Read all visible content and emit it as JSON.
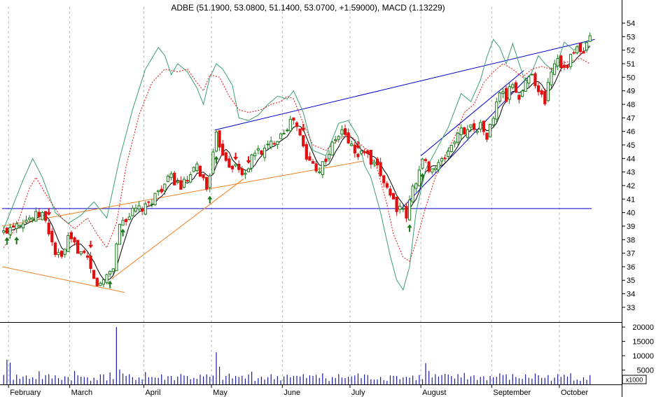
{
  "chart_data": {
    "type": "candlestick",
    "title": "ADBE (51.1900, 53.0800, 51.1400, 53.0700, +1.59000), MACD (1.13229)",
    "volume_unit_label": "x1000",
    "price_axis": {
      "ylim": [
        32.4,
        54.7
      ],
      "ticks": [
        33,
        34,
        35,
        36,
        37,
        38,
        39,
        40,
        41,
        42,
        43,
        44,
        45,
        46,
        47,
        48,
        49,
        50,
        51,
        52,
        53,
        54
      ]
    },
    "volume_axis": {
      "ylim": [
        0,
        21000
      ],
      "ticks": [
        5000,
        10000,
        15000,
        20000
      ]
    },
    "x_range": [
      0,
      183
    ],
    "months": [
      {
        "label": "February",
        "x": 2
      },
      {
        "label": "March",
        "x": 21
      },
      {
        "label": "April",
        "x": 44
      },
      {
        "label": "May",
        "x": 65
      },
      {
        "label": "June",
        "x": 87
      },
      {
        "label": "July",
        "x": 108
      },
      {
        "label": "August",
        "x": 130
      },
      {
        "label": "September",
        "x": 152
      },
      {
        "label": "October",
        "x": 173
      }
    ],
    "price_anchors": [
      [
        0,
        38.5
      ],
      [
        3,
        39.2
      ],
      [
        8,
        39.6
      ],
      [
        12,
        39.9
      ],
      [
        14,
        38.6
      ],
      [
        16,
        37.0
      ],
      [
        18,
        36.6
      ],
      [
        20,
        38.0
      ],
      [
        22,
        37.6
      ],
      [
        26,
        36.4
      ],
      [
        28,
        35.0
      ],
      [
        30,
        34.6
      ],
      [
        32,
        35.4
      ],
      [
        34,
        36.0
      ],
      [
        36,
        39.2
      ],
      [
        38,
        39.6
      ],
      [
        41,
        40.2
      ],
      [
        44,
        40.3
      ],
      [
        48,
        41.6
      ],
      [
        52,
        42.6
      ],
      [
        55,
        41.9
      ],
      [
        58,
        42.6
      ],
      [
        60,
        43.4
      ],
      [
        62,
        42.4
      ],
      [
        63,
        41.8
      ],
      [
        65,
        44.2
      ],
      [
        66,
        45.6
      ],
      [
        68,
        44.5
      ],
      [
        70,
        43.6
      ],
      [
        72,
        43.4
      ],
      [
        74,
        42.8
      ],
      [
        76,
        43.4
      ],
      [
        78,
        44.5
      ],
      [
        81,
        44.6
      ],
      [
        85,
        45.6
      ],
      [
        88,
        46.4
      ],
      [
        90,
        46.9
      ],
      [
        92,
        45.6
      ],
      [
        94,
        44.0
      ],
      [
        96,
        43.6
      ],
      [
        98,
        43.2
      ],
      [
        100,
        44.0
      ],
      [
        103,
        45.4
      ],
      [
        105,
        46.0
      ],
      [
        107,
        45.3
      ],
      [
        110,
        44.1
      ],
      [
        112,
        44.6
      ],
      [
        114,
        43.6
      ],
      [
        116,
        43.2
      ],
      [
        118,
        42.4
      ],
      [
        120,
        41.4
      ],
      [
        122,
        40.4
      ],
      [
        124,
        40.0
      ],
      [
        125,
        39.7
      ],
      [
        127,
        41.8
      ],
      [
        129,
        43.1
      ],
      [
        130,
        43.8
      ],
      [
        133,
        43.2
      ],
      [
        136,
        43.7
      ],
      [
        139,
        45.0
      ],
      [
        142,
        46.0
      ],
      [
        145,
        46.3
      ],
      [
        148,
        46.4
      ],
      [
        150,
        45.6
      ],
      [
        152,
        47.0
      ],
      [
        154,
        49.0
      ],
      [
        156,
        48.4
      ],
      [
        158,
        49.6
      ],
      [
        160,
        48.4
      ],
      [
        162,
        49.6
      ],
      [
        164,
        50.5
      ],
      [
        166,
        48.8
      ],
      [
        168,
        48.3
      ],
      [
        170,
        50.6
      ],
      [
        172,
        51.5
      ],
      [
        174,
        50.6
      ],
      [
        176,
        51.4
      ],
      [
        178,
        52.1
      ],
      [
        180,
        51.6
      ],
      [
        182,
        53.07
      ]
    ],
    "bollinger_upper": [
      [
        0,
        38.8
      ],
      [
        6,
        42.4
      ],
      [
        9,
        44.0
      ],
      [
        12,
        42.6
      ],
      [
        16,
        40.0
      ],
      [
        20,
        39.2
      ],
      [
        24,
        39.8
      ],
      [
        28,
        40.8
      ],
      [
        32,
        39.6
      ],
      [
        36,
        44.0
      ],
      [
        40,
        47.6
      ],
      [
        44,
        50.6
      ],
      [
        48,
        52.2
      ],
      [
        50,
        51.6
      ],
      [
        52,
        50.2
      ],
      [
        54,
        51.0
      ],
      [
        57,
        50.4
      ],
      [
        60,
        49.2
      ],
      [
        62,
        48.0
      ],
      [
        64,
        50.0
      ],
      [
        66,
        51.0
      ],
      [
        68,
        50.6
      ],
      [
        71,
        49.4
      ],
      [
        73,
        47.0
      ],
      [
        76,
        46.8
      ],
      [
        79,
        47.2
      ],
      [
        82,
        48.0
      ],
      [
        85,
        48.6
      ],
      [
        88,
        48.4
      ],
      [
        90,
        49.0
      ],
      [
        93,
        47.4
      ],
      [
        96,
        44.6
      ],
      [
        100,
        44.2
      ],
      [
        104,
        46.6
      ],
      [
        107,
        46.8
      ],
      [
        110,
        45.6
      ],
      [
        112,
        43.5
      ],
      [
        114,
        42.6
      ],
      [
        117,
        40.0
      ],
      [
        120,
        36.8
      ],
      [
        122,
        35.0
      ],
      [
        124,
        34.3
      ],
      [
        126,
        36.0
      ],
      [
        128,
        40.0
      ],
      [
        131,
        43.2
      ],
      [
        134,
        44.5
      ],
      [
        138,
        46.3
      ],
      [
        142,
        48.8
      ],
      [
        145,
        48.2
      ],
      [
        148,
        49.8
      ],
      [
        150,
        51.5
      ],
      [
        152,
        52.8
      ],
      [
        154,
        52.2
      ],
      [
        156,
        51.0
      ],
      [
        158,
        52.5
      ],
      [
        160,
        51.0
      ],
      [
        162,
        49.6
      ],
      [
        164,
        50.4
      ],
      [
        166,
        51.6
      ],
      [
        168,
        51.0
      ],
      [
        171,
        50.4
      ],
      [
        174,
        52.6
      ],
      [
        177,
        52.0
      ],
      [
        180,
        52.6
      ],
      [
        182,
        52.2
      ]
    ],
    "signal_line": [
      [
        0,
        37.4
      ],
      [
        4,
        39.0
      ],
      [
        8,
        41.8
      ],
      [
        10,
        42.6
      ],
      [
        14,
        41.0
      ],
      [
        18,
        39.6
      ],
      [
        22,
        38.8
      ],
      [
        26,
        39.6
      ],
      [
        29,
        38.4
      ],
      [
        32,
        37.4
      ],
      [
        35,
        39.2
      ],
      [
        38,
        43.4
      ],
      [
        42,
        47.2
      ],
      [
        46,
        49.6
      ],
      [
        50,
        50.6
      ],
      [
        54,
        50.4
      ],
      [
        57,
        50.6
      ],
      [
        60,
        49.6
      ],
      [
        62,
        49.0
      ],
      [
        64,
        50.2
      ],
      [
        67,
        50.0
      ],
      [
        70,
        48.6
      ],
      [
        73,
        47.6
      ],
      [
        76,
        47.4
      ],
      [
        80,
        47.6
      ],
      [
        83,
        48.0
      ],
      [
        86,
        48.2
      ],
      [
        88,
        48.6
      ],
      [
        90,
        48.4
      ],
      [
        93,
        46.6
      ],
      [
        96,
        45.0
      ],
      [
        100,
        44.6
      ],
      [
        104,
        45.4
      ],
      [
        107,
        45.8
      ],
      [
        110,
        45.2
      ],
      [
        113,
        44.6
      ],
      [
        116,
        43.2
      ],
      [
        119,
        40.6
      ],
      [
        121,
        38.4
      ],
      [
        124,
        36.7
      ],
      [
        126,
        36.4
      ],
      [
        128,
        37.8
      ],
      [
        131,
        40.4
      ],
      [
        134,
        42.6
      ],
      [
        137,
        44.2
      ],
      [
        140,
        45.6
      ],
      [
        143,
        47.4
      ],
      [
        146,
        48.0
      ],
      [
        149,
        49.6
      ],
      [
        152,
        50.4
      ],
      [
        155,
        51.0
      ],
      [
        158,
        50.6
      ],
      [
        161,
        50.0
      ],
      [
        164,
        50.6
      ],
      [
        167,
        50.8
      ],
      [
        170,
        50.6
      ],
      [
        173,
        51.0
      ],
      [
        176,
        51.2
      ],
      [
        179,
        51.4
      ],
      [
        182,
        51.0
      ]
    ],
    "trendlines": [
      {
        "name": "upper-resistance-line",
        "color": "#0000cc",
        "from": [
          66,
          46.1
        ],
        "to": [
          184,
          52.8
        ]
      },
      {
        "name": "horizontal-support-line",
        "color": "#0000cc",
        "from": [
          0,
          40.3
        ],
        "to": [
          183,
          40.3
        ]
      },
      {
        "name": "august-channel-upper",
        "color": "#0000cc",
        "from": [
          130,
          44.2
        ],
        "to": [
          162,
          50.5
        ]
      },
      {
        "name": "august-channel-lower",
        "color": "#0000cc",
        "from": [
          124,
          40.3
        ],
        "to": [
          164,
          50.2
        ]
      },
      {
        "name": "rising-support-line",
        "color": "#f08020",
        "from": [
          0,
          39.0
        ],
        "to": [
          112,
          43.8
        ]
      },
      {
        "name": "falling-support-line",
        "color": "#f08020",
        "from": [
          0,
          36.0
        ],
        "to": [
          38,
          34.1
        ]
      },
      {
        "name": "march-rebound-line",
        "color": "#f08020",
        "from": [
          34,
          35.1
        ],
        "to": [
          75,
          42.5
        ]
      }
    ],
    "colors": {
      "up": "#1a7a1a",
      "down": "#e01010",
      "moving_average": "#000000",
      "bollinger": "#3aa070",
      "signal": "#e01010",
      "volume": "#1a1aa0",
      "grid": "#b0b0b0"
    }
  }
}
